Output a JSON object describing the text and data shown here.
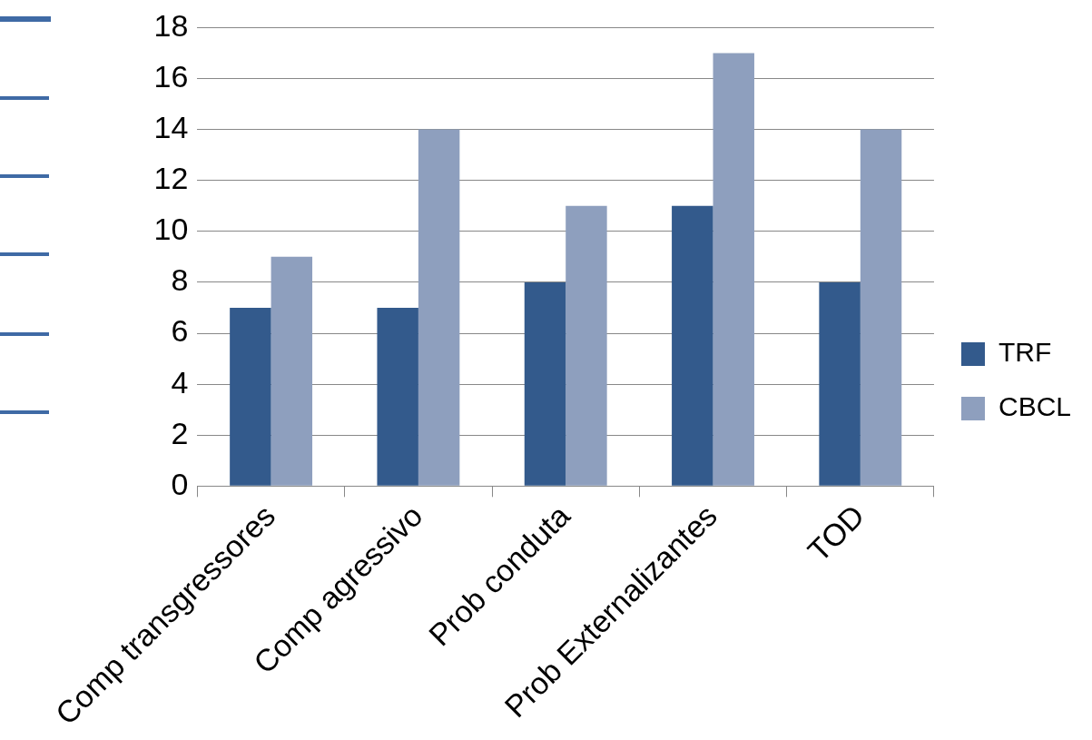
{
  "chart_data": {
    "type": "bar",
    "categories": [
      "Comp transgressores",
      "Comp agressivo",
      "Prob conduta",
      "Prob Externalizantes",
      "TOD"
    ],
    "series": [
      {
        "name": "TRF",
        "color": "#335a8c",
        "values": [
          7,
          7,
          8,
          11,
          8
        ]
      },
      {
        "name": "CBCL",
        "color": "#8e9fbe",
        "values": [
          9,
          14,
          11,
          17,
          14
        ]
      }
    ],
    "ylim": [
      0,
      18
    ],
    "yticks": [
      0,
      2,
      4,
      6,
      8,
      10,
      12,
      14,
      16,
      18
    ],
    "grid": "y",
    "legend": "right"
  }
}
